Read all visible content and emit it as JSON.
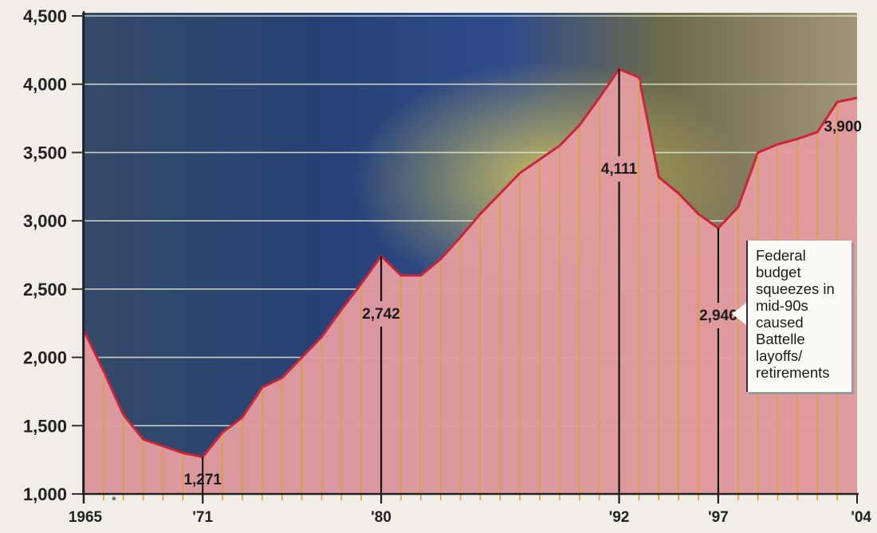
{
  "chart_data": {
    "type": "area",
    "title": "",
    "xlabel": "",
    "ylabel": "",
    "ylim": [
      1000,
      4500
    ],
    "xlim": [
      1965,
      2004
    ],
    "y_ticks": [
      1000,
      1500,
      2000,
      2500,
      3000,
      3500,
      4000,
      4500
    ],
    "y_tick_labels": [
      "1,000",
      "1,500",
      "2,000",
      "2,500",
      "3,000",
      "3,500",
      "4,000",
      "4,500"
    ],
    "x_tick_labels": [
      {
        "x": 1965,
        "label": "1965"
      },
      {
        "x": 1971,
        "label": "'71"
      },
      {
        "x": 1980,
        "label": "'80"
      },
      {
        "x": 1992,
        "label": "'92"
      },
      {
        "x": 1997,
        "label": "'97"
      },
      {
        "x": 2004,
        "label": "'04"
      }
    ],
    "grid": true,
    "colors": {
      "fill": "#e39ba0",
      "line": "#c9243a",
      "year_line": "#d9a23a"
    },
    "x": [
      1965,
      1966,
      1967,
      1968,
      1969,
      1970,
      1971,
      1972,
      1973,
      1974,
      1975,
      1976,
      1977,
      1978,
      1979,
      1980,
      1981,
      1982,
      1983,
      1984,
      1985,
      1986,
      1987,
      1988,
      1989,
      1990,
      1991,
      1992,
      1993,
      1994,
      1995,
      1996,
      1997,
      1998,
      1999,
      2000,
      2001,
      2002,
      2003,
      2004
    ],
    "values": [
      2200,
      1900,
      1580,
      1400,
      1350,
      1300,
      1271,
      1450,
      1560,
      1780,
      1850,
      2000,
      2150,
      2350,
      2540,
      2742,
      2600,
      2600,
      2720,
      2880,
      3050,
      3200,
      3350,
      3450,
      3550,
      3700,
      3900,
      4111,
      4050,
      3320,
      3200,
      3050,
      2946,
      3100,
      3500,
      3560,
      3600,
      3650,
      3870,
      3900
    ],
    "data_labels": [
      {
        "x": 1971,
        "value": 1271,
        "label": "1,271"
      },
      {
        "x": 1980,
        "value": 2742,
        "label": "2,742"
      },
      {
        "x": 1992,
        "value": 4111,
        "label": "4,111"
      },
      {
        "x": 1997,
        "value": 2946,
        "label": "2,946"
      },
      {
        "x": 2004,
        "value": 3900,
        "label": "3,900"
      }
    ],
    "annotation": "Federal budget squeezes in mid-90s caused Battelle layoffs/ retirements",
    "footnote_mark": "*"
  }
}
